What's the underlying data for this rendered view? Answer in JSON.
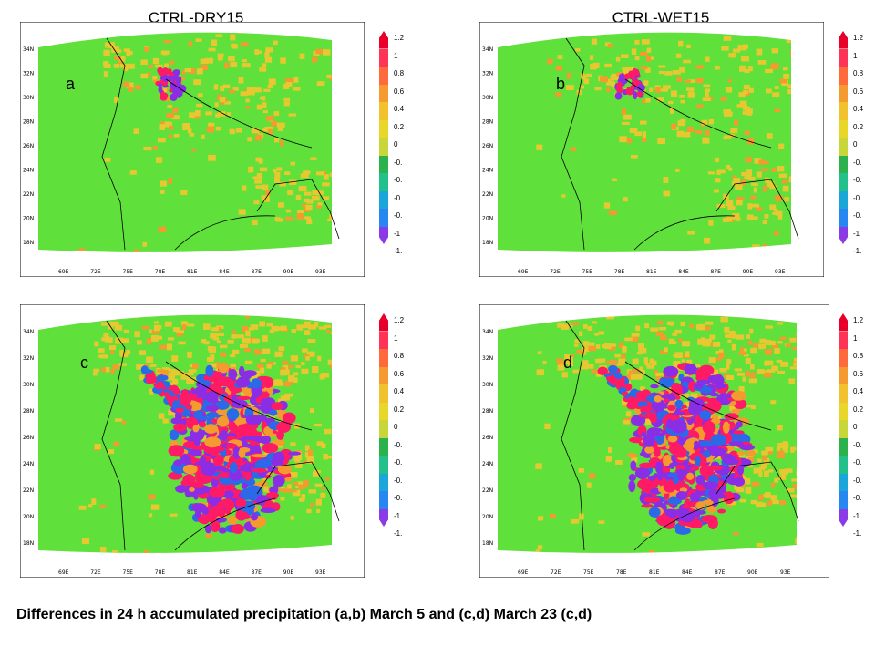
{
  "titles": {
    "left": "CTRL-DRY15",
    "right": "CTRL-WET15"
  },
  "panels": [
    {
      "letter": "a"
    },
    {
      "letter": "b"
    },
    {
      "letter": "c"
    },
    {
      "letter": "d"
    }
  ],
  "lat_ticks": [
    "34N",
    "32N",
    "30N",
    "28N",
    "26N",
    "24N",
    "22N",
    "20N",
    "18N"
  ],
  "lon_ticks": [
    "69E",
    "72E",
    "75E",
    "78E",
    "81E",
    "84E",
    "87E",
    "90E",
    "93E"
  ],
  "colorbar": {
    "labels": [
      "1.2",
      "1",
      "0.8",
      "0.6",
      "0.4",
      "0.2",
      "0",
      "-0.",
      "-0.",
      "-0.",
      "-0.",
      "-1",
      "-1."
    ],
    "colors": [
      "#e8002a",
      "#ff3355",
      "#ff6a3c",
      "#f59a2e",
      "#f2c22e",
      "#e8d628",
      "#c8d63a",
      "#2bb24c",
      "#22c08a",
      "#1aa6d8",
      "#2686f2",
      "#8a3ae6"
    ]
  },
  "map_colors": {
    "background": "#5fe03a",
    "positive_low": "#e8c830",
    "positive_mid": "#f59a2e",
    "positive_high": "#ff1a66",
    "negative_mid": "#2a6ae8",
    "negative_high": "#8a2ee6"
  },
  "caption": "Differences in 24 h accumulated precipitation (a,b) March 5 and (c,d) March 23 (c,d)"
}
